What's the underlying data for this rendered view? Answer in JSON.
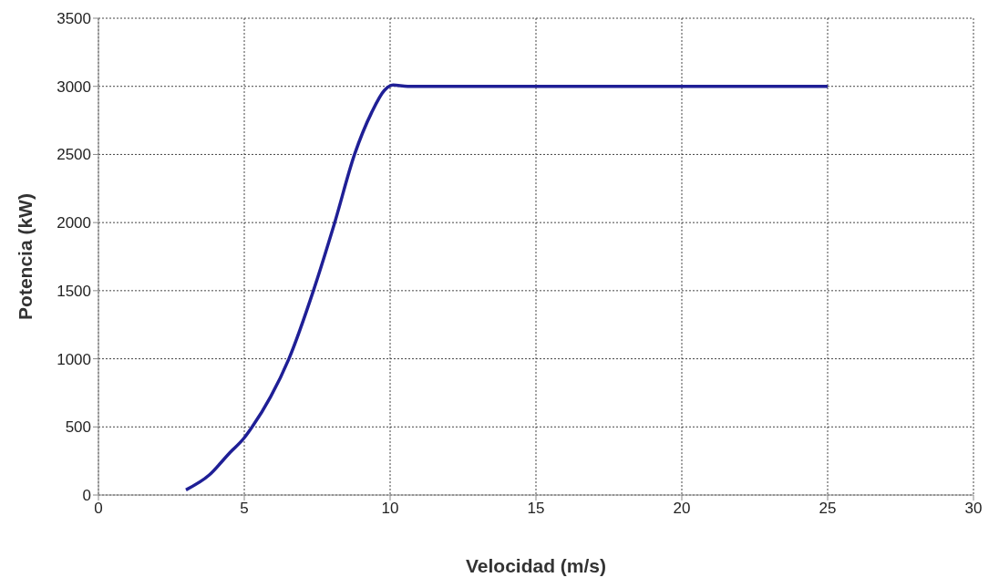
{
  "chart_data": {
    "type": "line",
    "xlabel": "Velocidad (m/s)",
    "ylabel": "Potencia (kW)",
    "x": [
      3,
      3.8,
      4.5,
      5,
      5.27,
      5.9,
      6.53,
      7.37,
      8.1,
      8.78,
      9.37,
      9.8,
      10.1,
      10.6,
      12,
      15,
      20,
      25
    ],
    "series": [
      {
        "color": "#1f1f96",
        "values": [
          38,
          147,
          310,
          420,
          500,
          720,
          1000,
          1500,
          2000,
          2500,
          2810,
          2970,
          3010,
          3000,
          3000,
          3000,
          3000,
          3000
        ]
      }
    ],
    "xlim": [
      0,
      30
    ],
    "xticks": [
      0,
      5,
      10,
      15,
      20,
      25,
      30
    ],
    "ylim": [
      0,
      3500
    ],
    "yticks": [
      0,
      500,
      1000,
      1500,
      2000,
      2500,
      3000,
      3500
    ],
    "grid": true,
    "marker": "none",
    "line_style": "solid"
  }
}
